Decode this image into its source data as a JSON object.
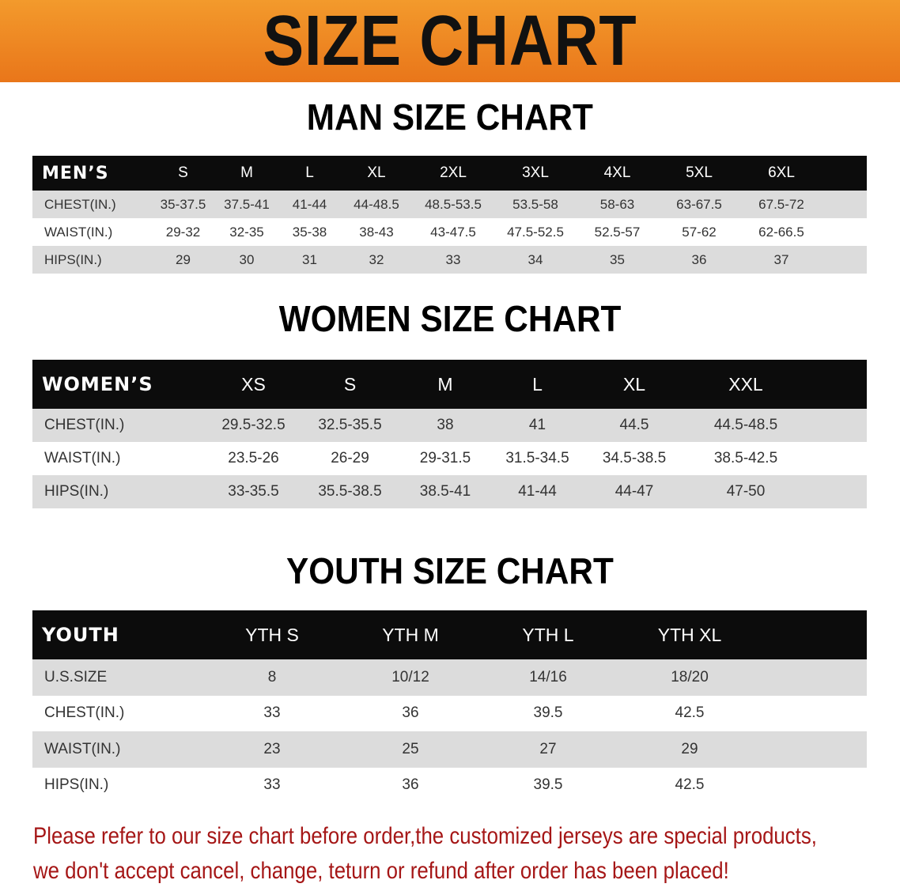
{
  "banner_title": "SIZE CHART",
  "men": {
    "title": "MAN SIZE CHART",
    "header": [
      "MEN’S",
      "S",
      "M",
      "L",
      "XL",
      "2XL",
      "3XL",
      "4XL",
      "5XL",
      "6XL"
    ],
    "rows": [
      [
        "CHEST(IN.)",
        "35-37.5",
        "37.5-41",
        "41-44",
        "44-48.5",
        "48.5-53.5",
        "53.5-58",
        "58-63",
        "63-67.5",
        "67.5-72"
      ],
      [
        "WAIST(IN.)",
        "29-32",
        "32-35",
        "35-38",
        "38-43",
        "43-47.5",
        "47.5-52.5",
        "52.5-57",
        "57-62",
        "62-66.5"
      ],
      [
        "HIPS(IN.)",
        "29",
        "30",
        "31",
        "32",
        "33",
        "34",
        "35",
        "36",
        "37"
      ]
    ]
  },
  "women": {
    "title": "WOMEN SIZE CHART",
    "header": [
      "WOMEN’S",
      "XS",
      "S",
      "M",
      "L",
      "XL",
      "XXL"
    ],
    "rows": [
      [
        "CHEST(IN.)",
        "29.5-32.5",
        "32.5-35.5",
        "38",
        "41",
        "44.5",
        "44.5-48.5"
      ],
      [
        "WAIST(IN.)",
        "23.5-26",
        "26-29",
        "29-31.5",
        "31.5-34.5",
        "34.5-38.5",
        "38.5-42.5"
      ],
      [
        "HIPS(IN.)",
        "33-35.5",
        "35.5-38.5",
        "38.5-41",
        "41-44",
        "44-47",
        "47-50"
      ]
    ]
  },
  "youth": {
    "title": "YOUTH SIZE CHART",
    "header": [
      "YOUTH",
      "YTH S",
      "YTH M",
      "YTH L",
      "YTH XL"
    ],
    "rows": [
      [
        "U.S.SIZE",
        "8",
        "10/12",
        "14/16",
        "18/20"
      ],
      [
        "CHEST(IN.)",
        "33",
        "36",
        "39.5",
        "42.5"
      ],
      [
        "WAIST(IN.)",
        "23",
        "25",
        "27",
        "29"
      ],
      [
        "HIPS(IN.)",
        "33",
        "36",
        "39.5",
        "42.5"
      ]
    ]
  },
  "notice": [
    "Please refer to our size chart before order,the customized jerseys are special products,",
    "we don't accept cancel, change, teturn or refund after order has been placed!"
  ],
  "colors": {
    "banner": "#ee8420",
    "header_row": "#0c0c0c",
    "stripe": "#dcdcdc",
    "notice": "#a51616"
  }
}
